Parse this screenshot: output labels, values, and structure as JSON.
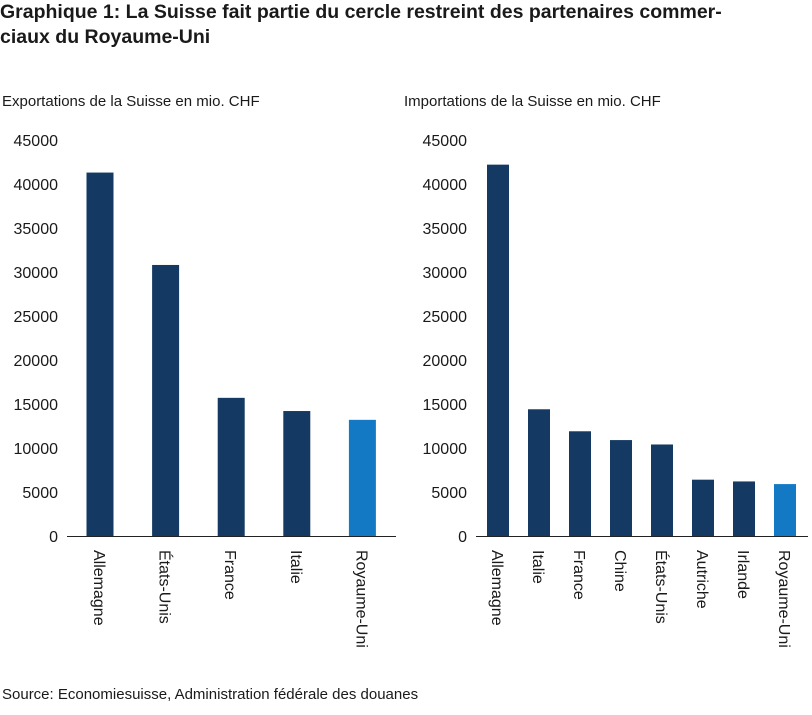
{
  "title_lines": [
    "Graphique 1: La Suisse fait partie du cercle restreint des partenaires commer-",
    "ciaux du Royaume-Uni"
  ],
  "source": "Source: Economiesuisse, Administration fédérale des douanes",
  "colors": {
    "bar": "#143a63",
    "highlight": "#1479c4",
    "axis": "#222222"
  },
  "chart_data": [
    {
      "type": "bar",
      "title": "Exportations de la Suisse en mio. CHF",
      "categories": [
        "Allemagne",
        "États-Unis",
        "France",
        "Italie",
        "Royaume-Uni"
      ],
      "values": [
        41300,
        30800,
        15700,
        14200,
        13200
      ],
      "highlight": "Royaume-Uni",
      "ylim": [
        0,
        45000
      ],
      "yticks": [
        0,
        5000,
        10000,
        15000,
        20000,
        25000,
        30000,
        35000,
        40000,
        45000
      ],
      "grid": false,
      "legend": "none"
    },
    {
      "type": "bar",
      "title": "Importations de la Suisse en mio. CHF",
      "categories": [
        "Allemagne",
        "Italie",
        "France",
        "Chine",
        "États-Unis",
        "Autriche",
        "Irlande",
        "Royaume-Uni"
      ],
      "values": [
        42200,
        14400,
        11900,
        10900,
        10400,
        6400,
        6200,
        5900
      ],
      "highlight": "Royaume-Uni",
      "ylim": [
        0,
        45000
      ],
      "yticks": [
        0,
        5000,
        10000,
        15000,
        20000,
        25000,
        30000,
        35000,
        40000,
        45000
      ],
      "grid": false,
      "legend": "none"
    }
  ]
}
